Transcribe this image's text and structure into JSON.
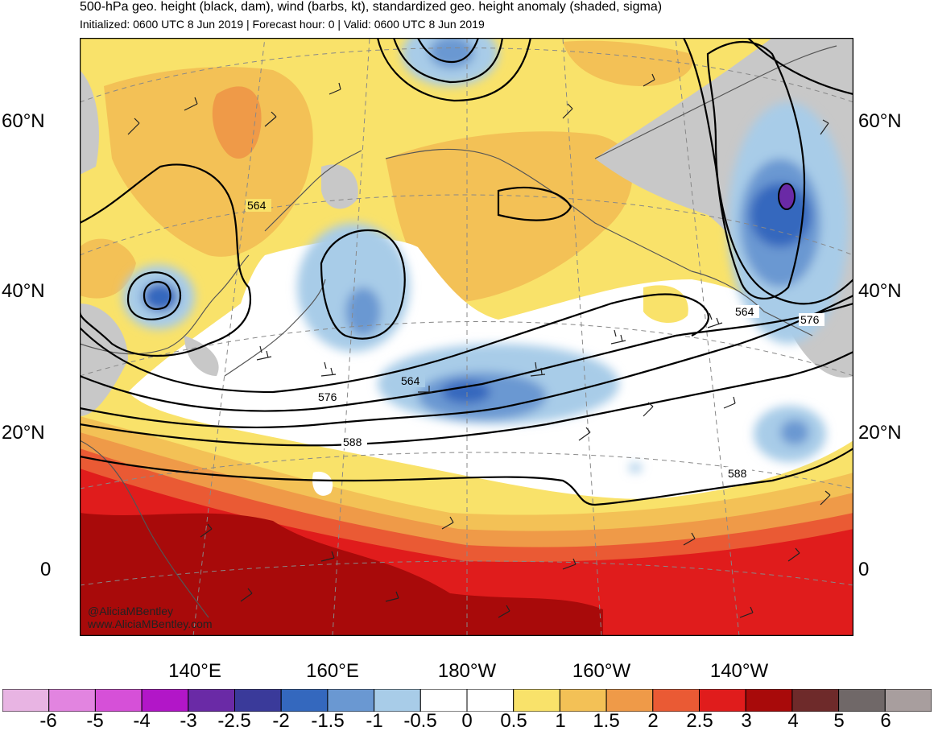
{
  "header": {
    "title": "500-hPa geo. height (black, dam), wind (barbs, kt), standardized geo. height anomaly (shaded, sigma)",
    "subtitle": "Initialized: 0600 UTC 8 Jun 2019 | Forecast hour: 0 | Valid: 0600 UTC 8 Jun 2019"
  },
  "map": {
    "lat_labels": [
      "60°N",
      "40°N",
      "20°N",
      "0"
    ],
    "lon_labels": [
      "140°E",
      "160°E",
      "180°W",
      "160°W",
      "140°W"
    ],
    "contour_labels": [
      "564",
      "564",
      "564",
      "576",
      "576",
      "588",
      "588"
    ],
    "credit_line1": "@AliciaMBentley",
    "credit_line2": "www.AliciaMBentley.com"
  },
  "colorbar": {
    "labels": [
      "-6",
      "-5",
      "-4",
      "-3",
      "-2.5",
      "-2",
      "-1.5",
      "-1",
      "-0.5",
      "0",
      "0.5",
      "1",
      "1.5",
      "2",
      "2.5",
      "3",
      "4",
      "5",
      "6"
    ],
    "colors": [
      "#e8b4e3",
      "#e284e0",
      "#d650d8",
      "#b216c8",
      "#6a2aa6",
      "#3a3a9a",
      "#3468be",
      "#6a98d2",
      "#a8cce8",
      "#ffffff",
      "#ffffff",
      "#f9e26a",
      "#f3c156",
      "#ef9a48",
      "#ea5a34",
      "#e01c1c",
      "#a80a0a",
      "#6e2a2a",
      "#706868",
      "#a89e9e"
    ]
  }
}
